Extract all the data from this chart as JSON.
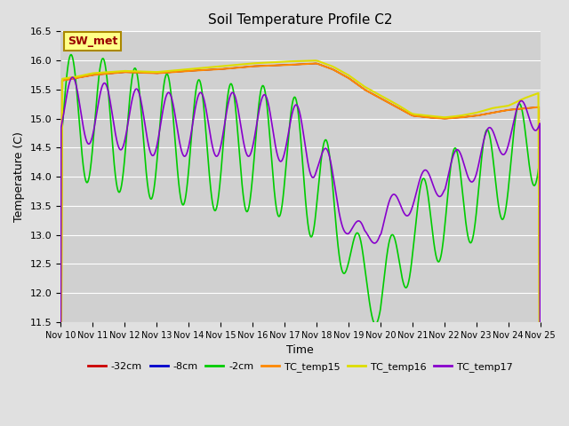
{
  "title": "Soil Temperature Profile C2",
  "xlabel": "Time",
  "ylabel": "Temperature (C)",
  "ylim": [
    11.5,
    16.5
  ],
  "xlim": [
    0,
    15
  ],
  "fig_bg": "#e0e0e0",
  "plot_bg": "#d0d0d0",
  "grid_color": "#ffffff",
  "series_colors": {
    "-32cm": "#cc0000",
    "-8cm": "#0000cc",
    "-2cm": "#00cc00",
    "TC_temp15": "#ff8800",
    "TC_temp16": "#dddd00",
    "TC_temp17": "#8800cc"
  },
  "xtick_labels": [
    "Nov 10",
    "Nov 11",
    "Nov 12",
    "Nov 13",
    "Nov 14",
    "Nov 15",
    "Nov 16",
    "Nov 17",
    "Nov 18",
    "Nov 19",
    "Nov 20",
    "Nov 21",
    "Nov 22",
    "Nov 23",
    "Nov 24",
    "Nov 25"
  ],
  "ytick_vals": [
    11.5,
    12.0,
    12.5,
    13.0,
    13.5,
    14.0,
    14.5,
    15.0,
    15.5,
    16.0,
    16.5
  ],
  "annotation_text": "SW_met",
  "annotation_color": "#990000",
  "annotation_bg": "#ffff88",
  "annotation_border": "#aa8800"
}
